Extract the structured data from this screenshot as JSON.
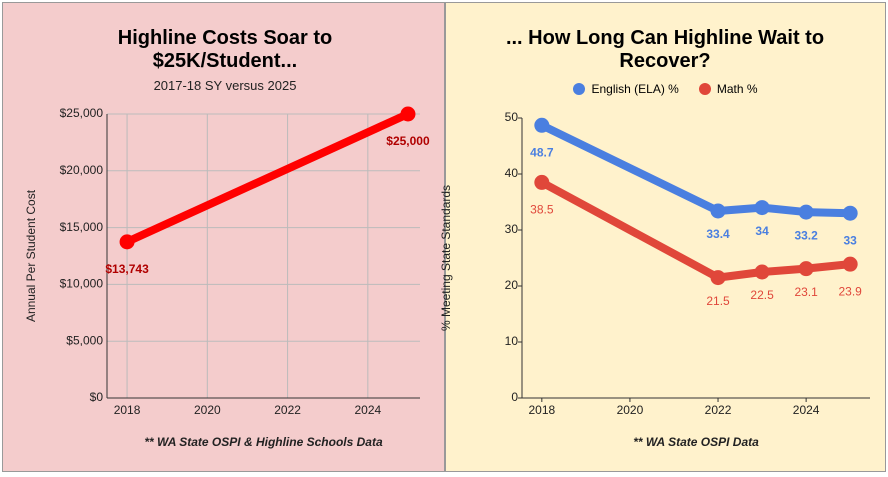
{
  "chart_data": [
    {
      "type": "line",
      "title": "Highline Costs Soar to $25K/Student...",
      "subtitle": "2017-18 SY versus 2025",
      "y_label": "Annual Per Student Cost",
      "note": "** WA State OSPI & Highline Schools Data",
      "x": [
        2018,
        2025
      ],
      "values": [
        13743,
        25000
      ],
      "value_labels": [
        "$13,743",
        "$25,000"
      ],
      "color": "#ff0000",
      "label_color": "#b00000",
      "xlim": [
        2017.5,
        2025.3
      ],
      "xticks": [
        2018,
        2020,
        2022,
        2024
      ],
      "ylim": [
        0,
        25000
      ],
      "yticks": [
        {
          "value": 0,
          "label": "$0"
        },
        {
          "value": 5000,
          "label": "$5,000"
        },
        {
          "value": 10000,
          "label": "$10,000"
        },
        {
          "value": 15000,
          "label": "$15,000"
        },
        {
          "value": 20000,
          "label": "$20,000"
        },
        {
          "value": 25000,
          "label": "$25,000"
        }
      ],
      "grid": true
    },
    {
      "type": "line",
      "title": "... How Long Can Highline Wait to Recover?",
      "y_label": "% Meeting State Standards",
      "note": "** WA State OSPI Data",
      "x": [
        2018,
        2022,
        2023,
        2024,
        2025
      ],
      "series": [
        {
          "name": "English (ELA) %",
          "color": "#4a7fe0",
          "values": [
            48.7,
            33.4,
            34,
            33.2,
            33
          ]
        },
        {
          "name": "Math %",
          "color": "#e0473a",
          "values": [
            38.5,
            21.5,
            22.5,
            23.1,
            23.9
          ]
        }
      ],
      "xlim": [
        2017.55,
        2025.45
      ],
      "xticks": [
        2018,
        2020,
        2022,
        2024
      ],
      "ylim": [
        0,
        50
      ],
      "yticks": [
        0,
        10,
        20,
        30,
        40,
        50
      ],
      "grid": false
    }
  ]
}
